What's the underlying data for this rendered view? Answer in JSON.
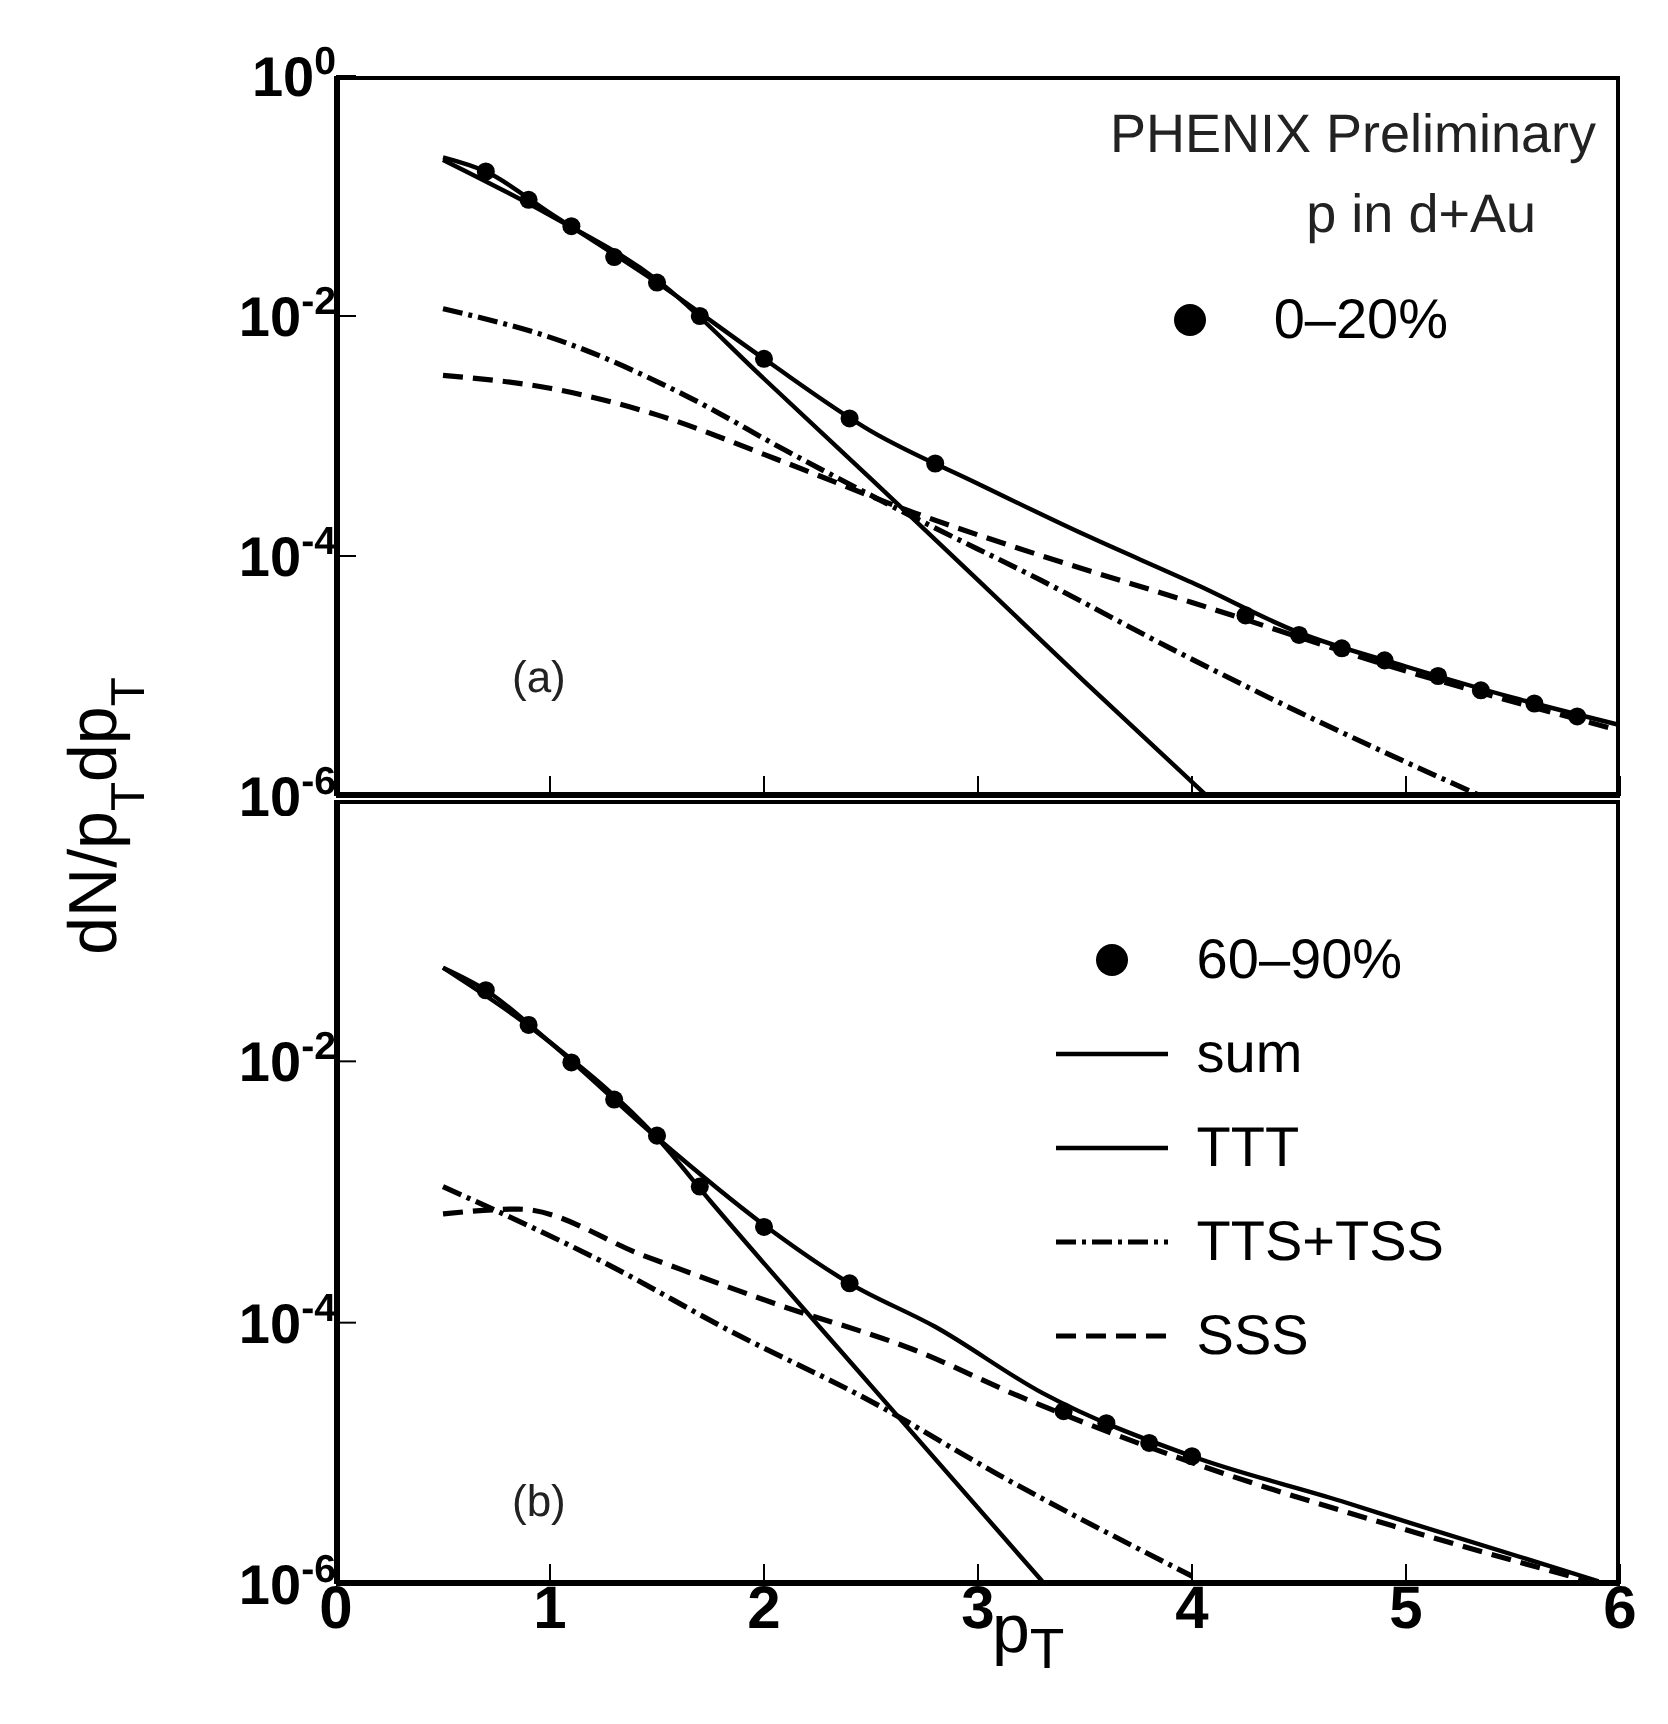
{
  "chart_data": [
    {
      "type": "line",
      "ylabel": "dN/p$_{T}$dp$_{T}$",
      "log": "y",
      "legend": "top right",
      "tick_labels": "y",
      "annotations": [
        "PHENIX Preliminary",
        "p in d+Au",
        "(a)"
      ],
      "xlim": [
        0,
        6
      ],
      "xticks": [
        {
          "value": 0,
          "label": null
        },
        {
          "value": 1,
          "label": null
        },
        {
          "value": 2,
          "label": null
        },
        {
          "value": 3,
          "label": null
        },
        {
          "value": 4,
          "label": null
        },
        {
          "value": 5,
          "label": null
        },
        {
          "value": 6,
          "label": null
        }
      ],
      "ylim": [
        1e-06,
        1
      ],
      "yticks": [
        {
          "value": 1,
          "label": "10$^{0}$"
        },
        {
          "value": 0.01,
          "label": "10$^{-2}$"
        },
        {
          "value": 0.0001,
          "label": "10$^{-4}$"
        },
        {
          "value": 1e-06,
          "label": "10$^{-6}$"
        }
      ],
      "series": [
        {
          "type": "scatter",
          "name": "0–20%",
          "color": "#000000",
          "marker": "circle",
          "x": [
            0.7,
            0.9,
            1.1,
            1.3,
            1.5,
            1.7,
            2.0,
            2.4,
            2.8,
            4.25,
            4.5,
            4.7,
            4.9,
            5.15,
            5.35,
            5.6,
            5.8
          ],
          "values": [
            0.16,
            0.093,
            0.056,
            0.031,
            0.019,
            0.01,
            0.0044,
            0.0014,
            0.00059,
            3.2e-05,
            2.2e-05,
            1.7e-05,
            1.35e-05,
            1e-05,
            7.6e-06,
            5.9e-06,
            4.6e-06
          ]
        },
        {
          "color": "#000000",
          "line_style": "solid",
          "x": [
            0.5,
            0.7,
            1,
            1.5,
            2,
            2.5,
            3,
            3.5,
            4,
            4.5,
            5,
            5.5,
            6
          ],
          "values": [
            0.21,
            0.16,
            0.072,
            0.019,
            0.0044,
            0.0011,
            0.0004,
            0.00015,
            6e-05,
            2.3e-05,
            1.2e-05,
            6.6e-06,
            3.9e-06
          ]
        },
        {
          "color": "#000000",
          "line_style": "solid",
          "x": [
            0.5,
            1,
            1.5,
            2,
            2.5,
            3,
            3.5,
            4.07
          ],
          "values": [
            0.2,
            0.069,
            0.02,
            0.003,
            0.00044,
            6.3e-05,
            8.9e-06,
            1e-06
          ]
        },
        {
          "color": "#000000",
          "line_style": "dashdot",
          "x": [
            0.5,
            1.05,
            1.65,
            2.1,
            2.7,
            3.3,
            3.9,
            4.5,
            5.35
          ],
          "values": [
            0.0115,
            0.0062,
            0.0021,
            0.00076,
            0.00021,
            6.2e-05,
            1.7e-05,
            5e-06,
            1e-06
          ]
        },
        {
          "color": "#000000",
          "line_style": "dashed",
          "x": [
            0.5,
            1,
            1.5,
            2.05,
            2.7,
            3.3,
            4,
            5,
            6
          ],
          "values": [
            0.0032,
            0.0025,
            0.0015,
            0.00065,
            0.00023,
            0.0001,
            4.1e-05,
            1.1e-05,
            3.5e-06
          ]
        }
      ]
    },
    {
      "type": "line",
      "xlabel": "p$_{T}$",
      "log": "y",
      "legend": "top right",
      "annotations": [
        "(b)"
      ],
      "xlim": [
        0,
        6
      ],
      "xticks": [
        0,
        1,
        2,
        3,
        4,
        5,
        6
      ],
      "ylim": [
        1e-06,
        1
      ],
      "yticks": [
        {
          "value": 0.01,
          "label": "10$^{-2}$"
        },
        {
          "value": 0.0001,
          "label": "10$^{-4}$"
        },
        {
          "value": 1e-06,
          "label": "10$^{-6}$"
        }
      ],
      "series": [
        {
          "type": "scatter",
          "name": "60–90%",
          "color": "#000000",
          "marker": "circle",
          "x": [
            0.7,
            0.9,
            1.1,
            1.3,
            1.5,
            1.7,
            2.0,
            2.4,
            3.4,
            3.6,
            3.8,
            4.0
          ],
          "values": [
            0.035,
            0.019,
            0.0098,
            0.0051,
            0.0027,
            0.0011,
            0.00054,
            0.0002,
            2.1e-05,
            1.7e-05,
            1.2e-05,
            9.5e-06
          ]
        },
        {
          "name": "sum",
          "color": "#000000",
          "line_style": "solid",
          "x": [
            0.5,
            0.7,
            1,
            1.5,
            2,
            2.4,
            2.8,
            3.3,
            4,
            4.7,
            5,
            5.9
          ],
          "values": [
            0.052,
            0.035,
            0.014,
            0.0026,
            0.00056,
            0.0002,
            9.3e-05,
            2.9e-05,
            9.5e-06,
            4.3e-06,
            3e-06,
            1.05e-06
          ]
        },
        {
          "name": "TTT",
          "color": "#000000",
          "line_style": "solid",
          "x": [
            0.5,
            1,
            1.5,
            1.75,
            2.5,
            3.3
          ],
          "values": [
            0.052,
            0.014,
            0.0026,
            0.00085,
            3.3e-05,
            1.05e-06
          ]
        },
        {
          "name": "TTS+TSS",
          "color": "#000000",
          "line_style": "dashdot",
          "x": [
            0.5,
            1.25,
            1.85,
            2.5,
            3.1,
            4
          ],
          "values": [
            0.0011,
            0.00029,
            8.5e-05,
            2.5e-05,
            6.8e-06,
            1.15e-06
          ]
        },
        {
          "name": "SSS",
          "color": "#000000",
          "line_style": "dashed",
          "x": [
            0.5,
            0.85,
            1.45,
            2.05,
            2.7,
            3.2,
            4,
            5,
            5.9
          ],
          "values": [
            0.00068,
            0.00074,
            0.00032,
            0.00014,
            6.2e-05,
            2.7e-05,
            8.5e-06,
            2.6e-06,
            1e-06
          ]
        }
      ]
    }
  ]
}
